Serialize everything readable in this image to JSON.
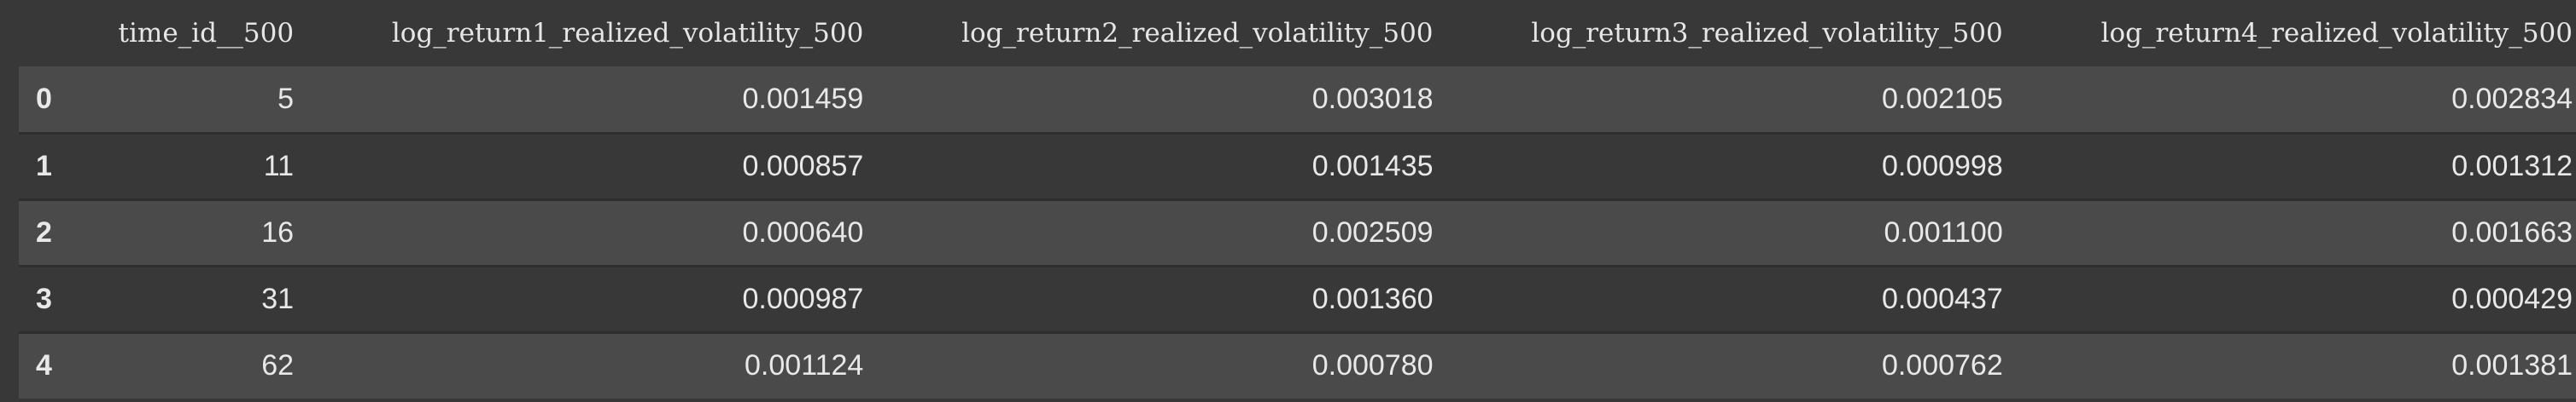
{
  "table": {
    "index_header": "",
    "columns": [
      "time_id__500",
      "log_return1_realized_volatility_500",
      "log_return2_realized_volatility_500",
      "log_return3_realized_volatility_500",
      "log_return4_realized_volatility_500"
    ],
    "rows": [
      {
        "index": "0",
        "cells": [
          "5",
          "0.001459",
          "0.003018",
          "0.002105",
          "0.002834"
        ]
      },
      {
        "index": "1",
        "cells": [
          "11",
          "0.000857",
          "0.001435",
          "0.000998",
          "0.001312"
        ]
      },
      {
        "index": "2",
        "cells": [
          "16",
          "0.000640",
          "0.002509",
          "0.001100",
          "0.001663"
        ]
      },
      {
        "index": "3",
        "cells": [
          "31",
          "0.000987",
          "0.001360",
          "0.000437",
          "0.000429"
        ]
      },
      {
        "index": "4",
        "cells": [
          "62",
          "0.001124",
          "0.000780",
          "0.000762",
          "0.001381"
        ]
      }
    ]
  },
  "colors": {
    "background": "#383838",
    "row_stripe": "#4a4a4a",
    "text": "#e8e8e8"
  }
}
